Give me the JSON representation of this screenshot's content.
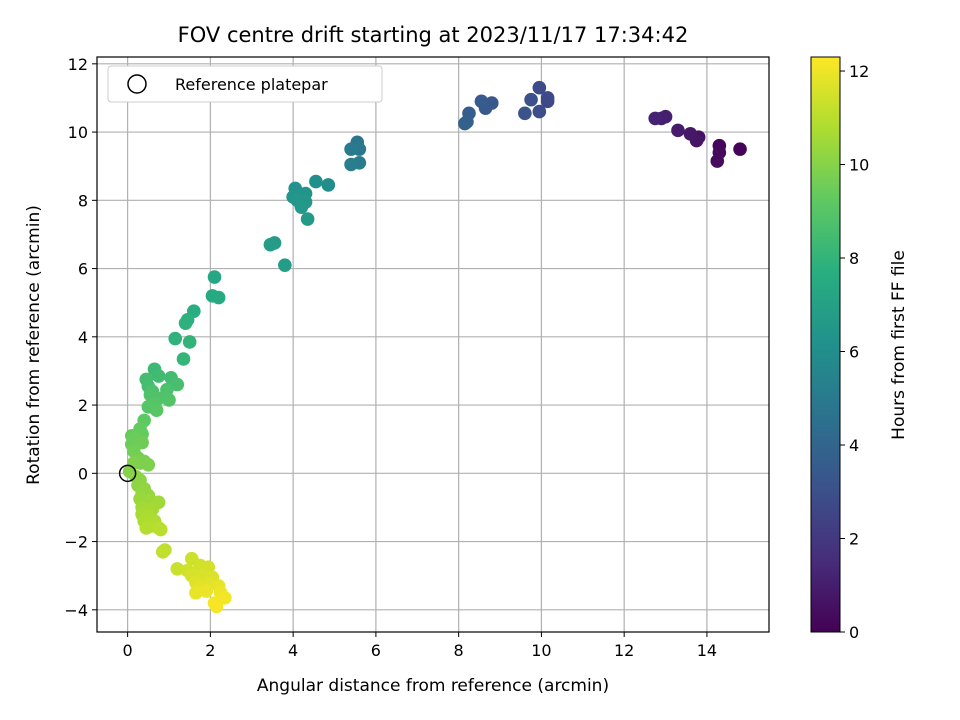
{
  "chart_data": {
    "type": "scatter",
    "title": "FOV centre drift starting at 2023/11/17 17:34:42",
    "xlabel": "Angular distance from reference (arcmin)",
    "ylabel": "Rotation from reference (arcmin)",
    "xlim": [
      -0.74,
      15.5
    ],
    "ylim": [
      -4.65,
      12.2
    ],
    "xticks": [
      "0",
      "2",
      "4",
      "6",
      "8",
      "10",
      "12",
      "14"
    ],
    "xtick_values": [
      0,
      2,
      4,
      6,
      8,
      10,
      12,
      14
    ],
    "yticks": [
      "−4",
      "−2",
      "0",
      "2",
      "4",
      "6",
      "8",
      "10",
      "12"
    ],
    "ytick_values": [
      -4,
      -2,
      0,
      2,
      4,
      6,
      8,
      10,
      12
    ],
    "grid": true,
    "legend": {
      "location": "top-left",
      "entries": [
        {
          "label": "Reference platepar",
          "marker": "open-circle"
        }
      ]
    },
    "reference_point": {
      "x": 0,
      "y": 0
    },
    "colorbar": {
      "label": "Hours from first FF file",
      "colormap": "viridis",
      "range": [
        0,
        12.3
      ],
      "ticks": [
        "0",
        "2",
        "4",
        "6",
        "8",
        "10",
        "12"
      ],
      "tick_values": [
        0,
        2,
        4,
        6,
        8,
        10,
        12
      ]
    },
    "series": [
      {
        "marker": "filled-circle",
        "points": [
          {
            "x": 14.8,
            "y": 9.5,
            "c": 0.1
          },
          {
            "x": 14.3,
            "y": 9.6,
            "c": 0.2
          },
          {
            "x": 14.3,
            "y": 9.4,
            "c": 0.3
          },
          {
            "x": 14.25,
            "y": 9.15,
            "c": 0.4
          },
          {
            "x": 13.8,
            "y": 9.85,
            "c": 0.6
          },
          {
            "x": 13.75,
            "y": 9.75,
            "c": 0.7
          },
          {
            "x": 13.6,
            "y": 9.95,
            "c": 0.8
          },
          {
            "x": 13.3,
            "y": 10.05,
            "c": 0.9
          },
          {
            "x": 13.0,
            "y": 10.45,
            "c": 1.0
          },
          {
            "x": 12.9,
            "y": 10.4,
            "c": 1.1
          },
          {
            "x": 12.75,
            "y": 10.4,
            "c": 1.2
          },
          {
            "x": 10.15,
            "y": 10.9,
            "c": 2.6
          },
          {
            "x": 10.15,
            "y": 11.0,
            "c": 2.7
          },
          {
            "x": 9.95,
            "y": 11.3,
            "c": 2.8
          },
          {
            "x": 9.95,
            "y": 10.6,
            "c": 2.9
          },
          {
            "x": 9.75,
            "y": 10.95,
            "c": 3.0
          },
          {
            "x": 9.6,
            "y": 10.55,
            "c": 3.1
          },
          {
            "x": 8.8,
            "y": 10.85,
            "c": 3.3
          },
          {
            "x": 8.65,
            "y": 10.7,
            "c": 3.4
          },
          {
            "x": 8.55,
            "y": 10.9,
            "c": 3.5
          },
          {
            "x": 8.25,
            "y": 10.55,
            "c": 3.6
          },
          {
            "x": 8.2,
            "y": 10.3,
            "c": 3.7
          },
          {
            "x": 8.15,
            "y": 10.25,
            "c": 3.8
          },
          {
            "x": 5.55,
            "y": 9.7,
            "c": 4.8
          },
          {
            "x": 5.6,
            "y": 9.5,
            "c": 4.9
          },
          {
            "x": 5.4,
            "y": 9.5,
            "c": 5.0
          },
          {
            "x": 5.6,
            "y": 9.1,
            "c": 5.1
          },
          {
            "x": 5.4,
            "y": 9.05,
            "c": 5.2
          },
          {
            "x": 4.85,
            "y": 8.45,
            "c": 6.0
          },
          {
            "x": 4.55,
            "y": 8.55,
            "c": 6.1
          },
          {
            "x": 4.05,
            "y": 8.35,
            "c": 6.2
          },
          {
            "x": 4.3,
            "y": 8.2,
            "c": 6.3
          },
          {
            "x": 4.0,
            "y": 8.1,
            "c": 6.4
          },
          {
            "x": 4.1,
            "y": 8.0,
            "c": 6.45
          },
          {
            "x": 4.3,
            "y": 7.95,
            "c": 6.5
          },
          {
            "x": 4.2,
            "y": 7.8,
            "c": 6.55
          },
          {
            "x": 4.35,
            "y": 7.45,
            "c": 6.6
          },
          {
            "x": 3.55,
            "y": 6.75,
            "c": 6.7
          },
          {
            "x": 3.45,
            "y": 6.7,
            "c": 6.75
          },
          {
            "x": 3.8,
            "y": 6.1,
            "c": 6.8
          },
          {
            "x": 2.1,
            "y": 5.75,
            "c": 7.3
          },
          {
            "x": 2.2,
            "y": 5.15,
            "c": 7.4
          },
          {
            "x": 2.05,
            "y": 5.2,
            "c": 7.5
          },
          {
            "x": 1.6,
            "y": 4.75,
            "c": 7.7
          },
          {
            "x": 1.45,
            "y": 4.5,
            "c": 7.8
          },
          {
            "x": 1.4,
            "y": 4.4,
            "c": 7.85
          },
          {
            "x": 1.15,
            "y": 3.95,
            "c": 7.9
          },
          {
            "x": 1.5,
            "y": 3.85,
            "c": 8.0
          },
          {
            "x": 1.35,
            "y": 3.35,
            "c": 8.1
          },
          {
            "x": 0.65,
            "y": 3.05,
            "c": 8.3
          },
          {
            "x": 0.75,
            "y": 2.85,
            "c": 8.4
          },
          {
            "x": 1.05,
            "y": 2.8,
            "c": 8.45
          },
          {
            "x": 0.45,
            "y": 2.75,
            "c": 8.5
          },
          {
            "x": 0.5,
            "y": 2.55,
            "c": 8.55
          },
          {
            "x": 1.2,
            "y": 2.6,
            "c": 8.6
          },
          {
            "x": 0.6,
            "y": 2.4,
            "c": 8.7
          },
          {
            "x": 0.95,
            "y": 2.45,
            "c": 8.75
          },
          {
            "x": 0.55,
            "y": 2.3,
            "c": 8.8
          },
          {
            "x": 0.75,
            "y": 2.2,
            "c": 8.85
          },
          {
            "x": 1.0,
            "y": 2.15,
            "c": 8.9
          },
          {
            "x": 0.65,
            "y": 2.05,
            "c": 8.95
          },
          {
            "x": 0.5,
            "y": 1.95,
            "c": 9.0
          },
          {
            "x": 0.7,
            "y": 1.85,
            "c": 9.05
          },
          {
            "x": 0.4,
            "y": 1.55,
            "c": 9.2
          },
          {
            "x": 0.3,
            "y": 1.3,
            "c": 9.3
          },
          {
            "x": 0.35,
            "y": 1.15,
            "c": 9.35
          },
          {
            "x": 0.1,
            "y": 1.1,
            "c": 9.4
          },
          {
            "x": 0.2,
            "y": 1.0,
            "c": 9.45
          },
          {
            "x": 0.1,
            "y": 0.85,
            "c": 9.5
          },
          {
            "x": 0.35,
            "y": 0.9,
            "c": 9.55
          },
          {
            "x": 0.15,
            "y": 0.65,
            "c": 9.6
          },
          {
            "x": 0.25,
            "y": 0.45,
            "c": 9.7
          },
          {
            "x": 0.4,
            "y": 0.35,
            "c": 9.75
          },
          {
            "x": 0.3,
            "y": 0.3,
            "c": 9.8
          },
          {
            "x": 0.5,
            "y": 0.25,
            "c": 9.85
          },
          {
            "x": 0.15,
            "y": 0.3,
            "c": 9.9
          },
          {
            "x": 0.05,
            "y": 0.05,
            "c": 10.0
          },
          {
            "x": 0.2,
            "y": -0.1,
            "c": 10.05
          },
          {
            "x": 0.3,
            "y": -0.2,
            "c": 10.1
          },
          {
            "x": 0.25,
            "y": -0.35,
            "c": 10.15
          },
          {
            "x": 0.4,
            "y": -0.45,
            "c": 10.2
          },
          {
            "x": 0.35,
            "y": -0.6,
            "c": 10.25
          },
          {
            "x": 0.5,
            "y": -0.65,
            "c": 10.3
          },
          {
            "x": 0.3,
            "y": -0.75,
            "c": 10.35
          },
          {
            "x": 0.55,
            "y": -0.8,
            "c": 10.4
          },
          {
            "x": 0.45,
            "y": -0.9,
            "c": 10.45
          },
          {
            "x": 0.75,
            "y": -0.85,
            "c": 10.5
          },
          {
            "x": 0.35,
            "y": -1.0,
            "c": 10.55
          },
          {
            "x": 0.6,
            "y": -1.05,
            "c": 10.6
          },
          {
            "x": 0.35,
            "y": -1.2,
            "c": 10.65
          },
          {
            "x": 0.5,
            "y": -1.25,
            "c": 10.7
          },
          {
            "x": 0.4,
            "y": -1.4,
            "c": 10.75
          },
          {
            "x": 0.65,
            "y": -1.4,
            "c": 10.8
          },
          {
            "x": 0.55,
            "y": -1.55,
            "c": 10.85
          },
          {
            "x": 0.45,
            "y": -1.6,
            "c": 10.9
          },
          {
            "x": 0.75,
            "y": -1.6,
            "c": 10.95
          },
          {
            "x": 0.8,
            "y": -1.65,
            "c": 11.0
          },
          {
            "x": 0.9,
            "y": -2.25,
            "c": 11.1
          },
          {
            "x": 0.85,
            "y": -2.3,
            "c": 11.15
          },
          {
            "x": 1.2,
            "y": -2.8,
            "c": 11.3
          },
          {
            "x": 1.55,
            "y": -2.5,
            "c": 11.35
          },
          {
            "x": 1.45,
            "y": -2.85,
            "c": 11.4
          },
          {
            "x": 1.75,
            "y": -2.7,
            "c": 11.45
          },
          {
            "x": 1.95,
            "y": -2.75,
            "c": 11.5
          },
          {
            "x": 1.55,
            "y": -3.0,
            "c": 11.55
          },
          {
            "x": 1.8,
            "y": -3.0,
            "c": 11.6
          },
          {
            "x": 2.05,
            "y": -3.05,
            "c": 11.65
          },
          {
            "x": 1.65,
            "y": -3.2,
            "c": 11.7
          },
          {
            "x": 1.95,
            "y": -3.25,
            "c": 11.75
          },
          {
            "x": 1.75,
            "y": -3.35,
            "c": 11.8
          },
          {
            "x": 2.2,
            "y": -3.3,
            "c": 11.85
          },
          {
            "x": 1.65,
            "y": -3.5,
            "c": 11.9
          },
          {
            "x": 1.9,
            "y": -3.45,
            "c": 11.95
          },
          {
            "x": 2.25,
            "y": -3.5,
            "c": 12.0
          },
          {
            "x": 2.35,
            "y": -3.65,
            "c": 12.1
          },
          {
            "x": 2.1,
            "y": -3.8,
            "c": 12.15
          },
          {
            "x": 2.15,
            "y": -3.9,
            "c": 12.2
          }
        ]
      }
    ]
  }
}
